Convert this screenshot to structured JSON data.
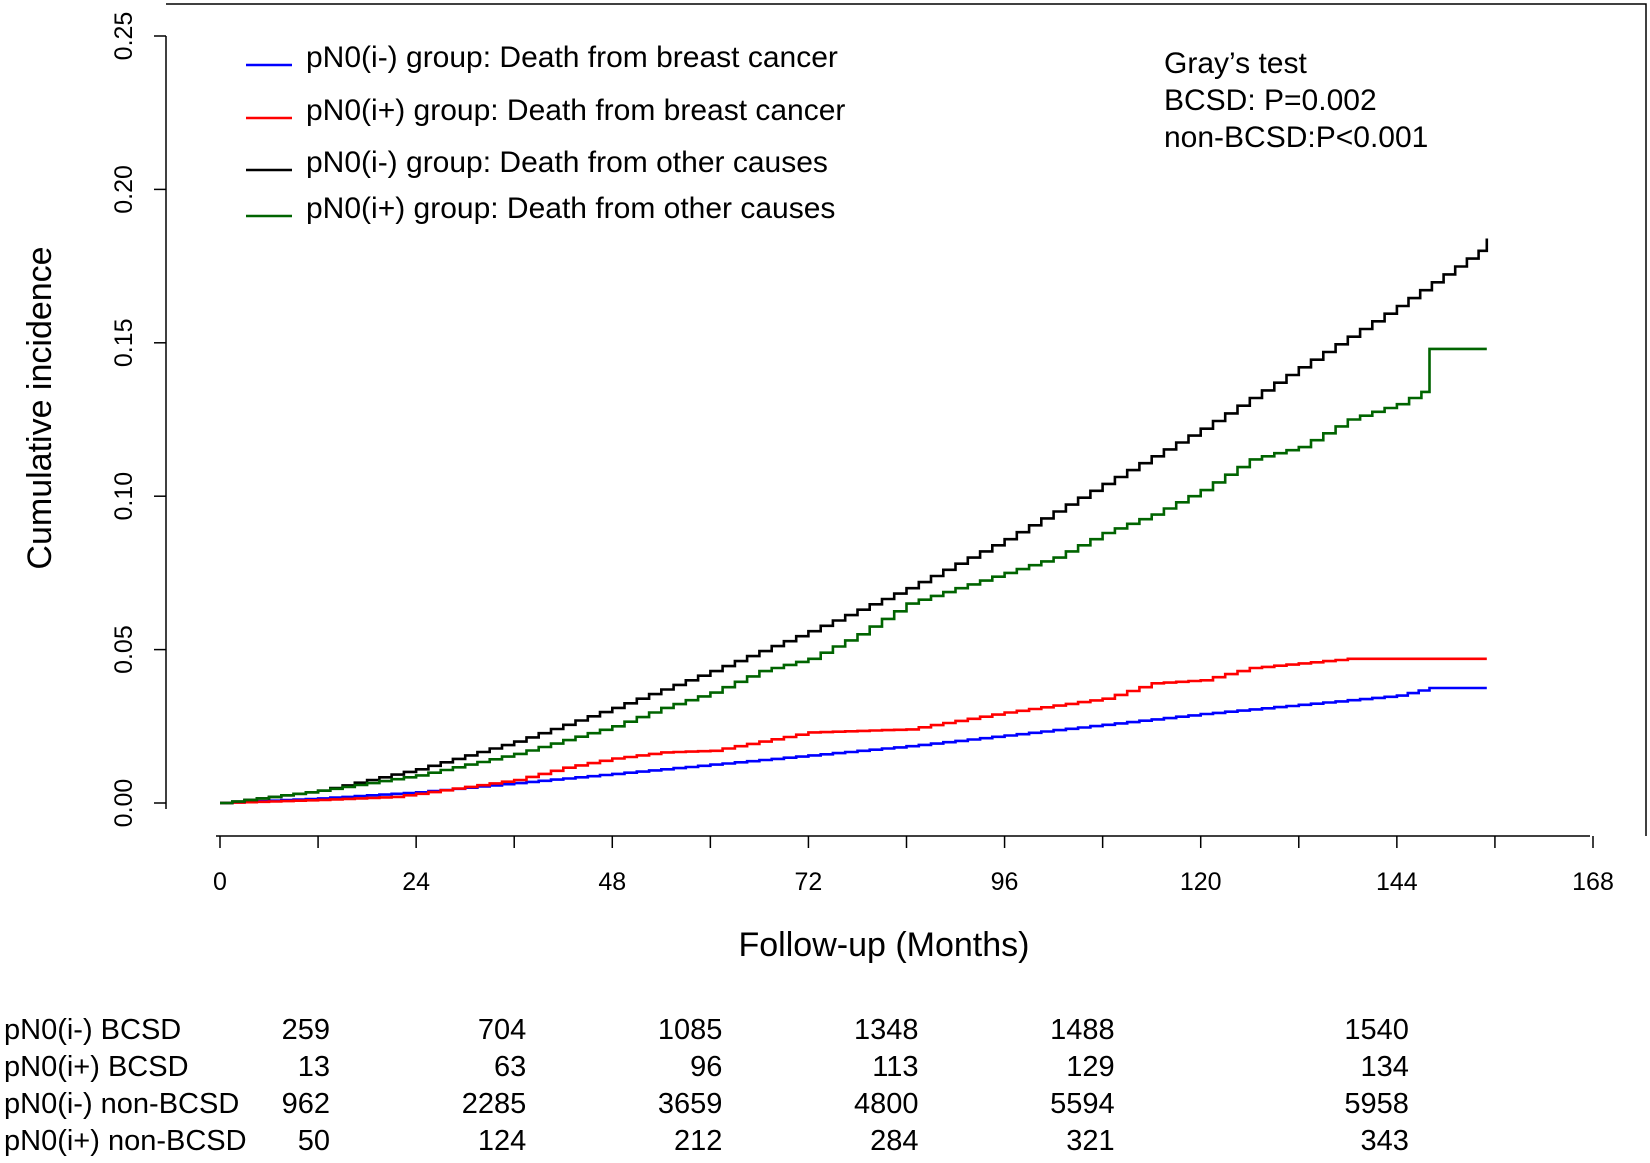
{
  "chart_data": {
    "type": "line",
    "title": "",
    "xlabel": "Follow-up (Months)",
    "ylabel": "Cumulative incidence",
    "xlim": [
      0,
      168
    ],
    "ylim": [
      0,
      0.25
    ],
    "xticks": [
      0,
      24,
      48,
      72,
      96,
      120,
      144,
      168
    ],
    "xtick_labels": [
      "0",
      "24",
      "48",
      "72",
      "96",
      "120",
      "144",
      "168"
    ],
    "yticks": [
      0.0,
      0.05,
      0.1,
      0.15,
      0.2,
      0.25
    ],
    "ytick_labels": [
      "0.00",
      "0.05",
      "0.10",
      "0.15",
      "0.20",
      "0.25"
    ],
    "legend_position": "top-left",
    "series": [
      {
        "name": "pN0(i-) group: Death from breast cancer",
        "color": "#0000ff",
        "x": [
          0,
          12,
          24,
          36,
          48,
          60,
          72,
          84,
          96,
          108,
          120,
          132,
          144,
          148,
          155
        ],
        "y": [
          0.0,
          0.0015,
          0.0035,
          0.0065,
          0.0095,
          0.0125,
          0.0155,
          0.0185,
          0.022,
          0.0255,
          0.029,
          0.032,
          0.035,
          0.0375,
          0.0375
        ]
      },
      {
        "name": "pN0(i+) group: Death from breast cancer",
        "color": "#ff0000",
        "x": [
          0,
          12,
          21,
          24,
          36,
          42,
          48,
          54,
          60,
          66,
          72,
          84,
          96,
          108,
          114,
          120,
          126,
          132,
          138,
          155
        ],
        "y": [
          0.0,
          0.001,
          0.002,
          0.003,
          0.0075,
          0.0115,
          0.0145,
          0.0165,
          0.017,
          0.02,
          0.023,
          0.024,
          0.0295,
          0.034,
          0.039,
          0.04,
          0.044,
          0.0455,
          0.047,
          0.047
        ]
      },
      {
        "name": "pN0(i-) group: Death from other causes",
        "color": "#000000",
        "x": [
          0,
          12,
          24,
          36,
          48,
          60,
          72,
          84,
          96,
          108,
          120,
          132,
          144,
          154,
          155
        ],
        "y": [
          0.0,
          0.004,
          0.011,
          0.02,
          0.031,
          0.043,
          0.056,
          0.07,
          0.086,
          0.104,
          0.122,
          0.142,
          0.162,
          0.18,
          0.184
        ]
      },
      {
        "name": "pN0(i+) group: Death from other causes",
        "color": "#006400",
        "x": [
          0,
          12,
          24,
          36,
          48,
          54,
          60,
          66,
          72,
          78,
          84,
          90,
          96,
          102,
          108,
          114,
          120,
          126,
          132,
          138,
          144,
          147,
          148,
          155
        ],
        "y": [
          0.0,
          0.004,
          0.009,
          0.016,
          0.025,
          0.031,
          0.036,
          0.043,
          0.047,
          0.055,
          0.065,
          0.07,
          0.075,
          0.08,
          0.088,
          0.094,
          0.102,
          0.112,
          0.116,
          0.125,
          0.13,
          0.134,
          0.148,
          0.148
        ]
      }
    ],
    "annotations": {
      "test_title": "Gray’s test",
      "bcsd": "BCSD: P=0.002",
      "non_bcsd": "non-BCSD:P<0.001"
    },
    "risk_table": {
      "x": [
        12,
        36,
        60,
        84,
        108,
        144
      ],
      "rows": [
        {
          "label": "pN0(i-) BCSD",
          "values": [
            "259",
            "704",
            "1085",
            "1348",
            "1488",
            "1540"
          ]
        },
        {
          "label": "pN0(i+) BCSD",
          "values": [
            "13",
            "63",
            "96",
            "113",
            "129",
            "134"
          ]
        },
        {
          "label": "pN0(i-) non-BCSD",
          "values": [
            "962",
            "2285",
            "3659",
            "4800",
            "5594",
            "5958"
          ]
        },
        {
          "label": "pN0(i+) non-BCSD",
          "values": [
            "50",
            "124",
            "212",
            "284",
            "321",
            "343"
          ]
        }
      ]
    }
  }
}
